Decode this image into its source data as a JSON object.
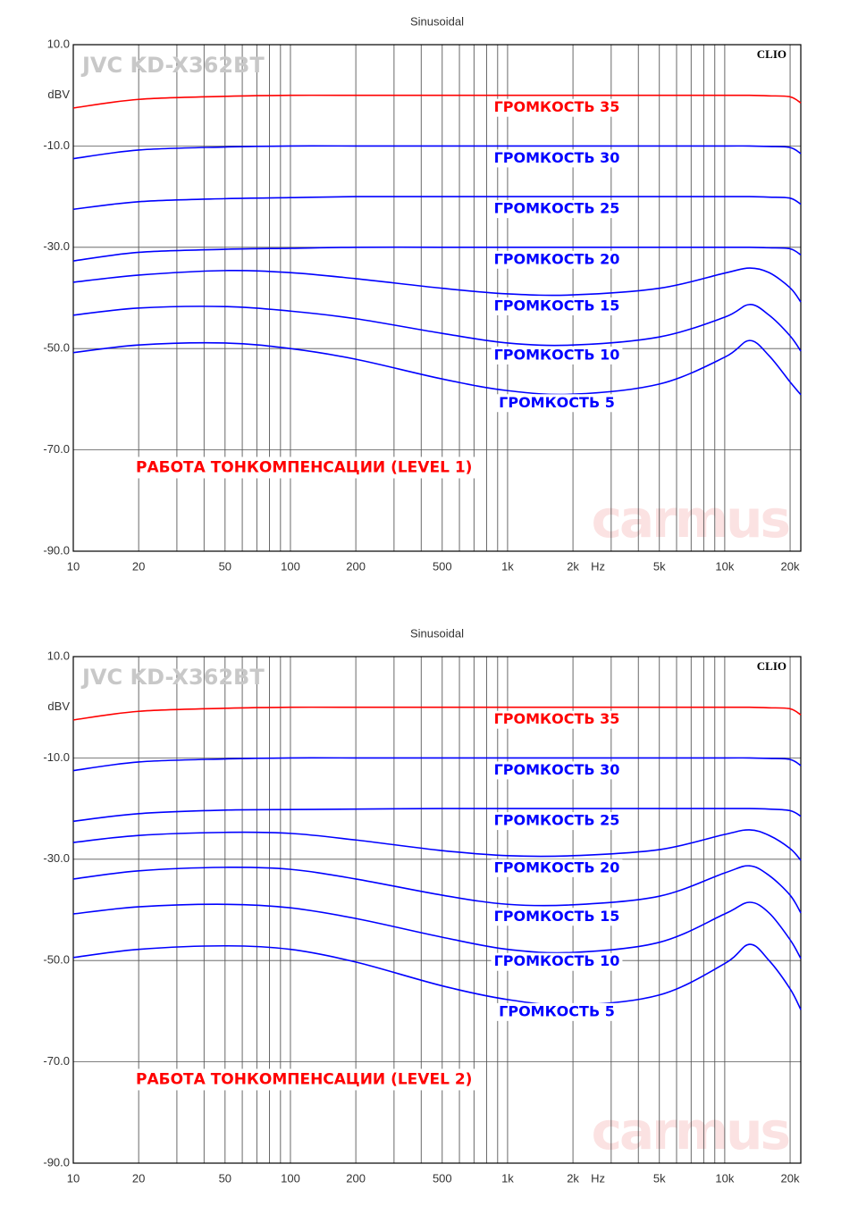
{
  "charts": [
    {
      "chart_data": {
        "type": "line",
        "title": "Sinusoidal",
        "watermark": "JVC KD-X362BT",
        "brand": "CLIO",
        "logo": "carmus",
        "annotation": "РАБОТА ТОНКОМПЕНСАЦИИ (LEVEL 1)",
        "x_unit": "Hz",
        "y_label": "dBV",
        "log_x": true,
        "xlim": [
          10,
          22400
        ],
        "ylim": [
          -90,
          10
        ],
        "xticks": [
          10,
          20,
          50,
          100,
          200,
          500,
          {
            "value": 1000,
            "label": "1k"
          },
          {
            "value": 2000,
            "label": "2k"
          },
          {
            "value": 5000,
            "label": "5k"
          },
          {
            "value": 10000,
            "label": "10k"
          },
          {
            "value": 20000,
            "label": "20k"
          }
        ],
        "minor_xticks": [
          30,
          40,
          60,
          70,
          80,
          90,
          300,
          400,
          600,
          700,
          800,
          900,
          3000,
          4000,
          6000,
          7000,
          8000,
          9000
        ],
        "yticks": [
          {
            "value": 10,
            "label": "10.0"
          },
          {
            "value": -10,
            "label": "-10.0"
          },
          {
            "value": -30,
            "label": "-30.0"
          },
          {
            "value": -50,
            "label": "-50.0"
          },
          {
            "value": -70,
            "label": "-70.0"
          },
          {
            "value": -90,
            "label": "-90.0"
          }
        ],
        "x": [
          10,
          20,
          50,
          100,
          200,
          500,
          1000,
          2000,
          5000,
          10000,
          13000,
          16000,
          20000,
          22400
        ],
        "series": [
          {
            "name": "ГРОМКОСТЬ 35",
            "color": "#ff0000",
            "values": [
              -2.5,
              -0.8,
              -0.2,
              0,
              0,
              0,
              0,
              0,
              0,
              0,
              0,
              -0.1,
              -0.3,
              -1.5
            ]
          },
          {
            "name": "ГРОМКОСТЬ 30",
            "color": "#0000ff",
            "values": [
              -12.5,
              -10.8,
              -10.2,
              -10,
              -10,
              -10,
              -10,
              -10,
              -10,
              -10,
              -10,
              -10.1,
              -10.3,
              -11.5
            ]
          },
          {
            "name": "ГРОМКОСТЬ 25",
            "color": "#0000ff",
            "values": [
              -22.5,
              -21,
              -20.4,
              -20.2,
              -20,
              -20,
              -20,
              -20,
              -20,
              -20,
              -20,
              -20.1,
              -20.3,
              -21.5
            ]
          },
          {
            "name": "ГРОМКОСТЬ 20",
            "color": "#0000ff",
            "values": [
              -32.7,
              -31,
              -30.4,
              -30.2,
              -30,
              -30,
              -30,
              -30,
              -30,
              -30,
              -30,
              -30.1,
              -30.3,
              -31.5
            ]
          },
          {
            "name": "ГРОМКОСТЬ 15",
            "color": "#0000ff",
            "values": [
              -36.9,
              -35.5,
              -34.6,
              -35,
              -36.2,
              -38.1,
              -39.2,
              -39.4,
              -38.1,
              -35.1,
              -34.1,
              -35,
              -38,
              -40.8
            ]
          },
          {
            "name": "ГРОМКОСТЬ 10",
            "color": "#0000ff",
            "values": [
              -43.4,
              -42,
              -41.7,
              -42.6,
              -44.1,
              -47,
              -48.9,
              -49.3,
              -47.7,
              -43.8,
              -41.3,
              -43.4,
              -47.5,
              -50.5
            ]
          },
          {
            "name": "ГРОМКОСТЬ 5",
            "color": "#0000ff",
            "values": [
              -50.8,
              -49.3,
              -48.9,
              -50,
              -52.1,
              -56,
              -58.3,
              -59,
              -57,
              -51.7,
              -48.4,
              -51.4,
              -56.6,
              -59.1
            ]
          }
        ]
      }
    },
    {
      "chart_data": {
        "type": "line",
        "title": "Sinusoidal",
        "watermark": "JVC KD-X362BT",
        "brand": "CLIO",
        "logo": "carmus",
        "annotation": "РАБОТА ТОНКОМПЕНСАЦИИ (LEVEL 2)",
        "x_unit": "Hz",
        "y_label": "dBV",
        "log_x": true,
        "xlim": [
          10,
          22400
        ],
        "ylim": [
          -90,
          10
        ],
        "xticks": [
          10,
          20,
          50,
          100,
          200,
          500,
          {
            "value": 1000,
            "label": "1k"
          },
          {
            "value": 2000,
            "label": "2k"
          },
          {
            "value": 5000,
            "label": "5k"
          },
          {
            "value": 10000,
            "label": "10k"
          },
          {
            "value": 20000,
            "label": "20k"
          }
        ],
        "minor_xticks": [
          30,
          40,
          60,
          70,
          80,
          90,
          300,
          400,
          600,
          700,
          800,
          900,
          3000,
          4000,
          6000,
          7000,
          8000,
          9000
        ],
        "yticks": [
          {
            "value": 10,
            "label": "10.0"
          },
          {
            "value": -10,
            "label": "-10.0"
          },
          {
            "value": -30,
            "label": "-30.0"
          },
          {
            "value": -50,
            "label": "-50.0"
          },
          {
            "value": -70,
            "label": "-70.0"
          },
          {
            "value": -90,
            "label": "-90.0"
          }
        ],
        "x": [
          10,
          20,
          50,
          100,
          200,
          500,
          1000,
          2000,
          5000,
          10000,
          13000,
          16000,
          20000,
          22400
        ],
        "series": [
          {
            "name": "ГРОМКОСТЬ 35",
            "color": "#ff0000",
            "values": [
              -2.5,
              -0.8,
              -0.2,
              0,
              0,
              0,
              0,
              0,
              0,
              0,
              0,
              -0.1,
              -0.3,
              -1.5
            ]
          },
          {
            "name": "ГРОМКОСТЬ 30",
            "color": "#0000ff",
            "values": [
              -12.5,
              -10.8,
              -10.2,
              -10,
              -10,
              -10,
              -10,
              -10,
              -10,
              -10,
              -10,
              -10.1,
              -10.3,
              -11.5
            ]
          },
          {
            "name": "ГРОМКОСТЬ 25",
            "color": "#0000ff",
            "values": [
              -22.5,
              -21,
              -20.3,
              -20.2,
              -20.1,
              -20,
              -20,
              -20,
              -20,
              -20,
              -20,
              -20.1,
              -20.4,
              -21.5
            ]
          },
          {
            "name": "ГРОМКОСТЬ 20",
            "color": "#0000ff",
            "values": [
              -26.7,
              -25.3,
              -24.7,
              -24.9,
              -26.2,
              -28.3,
              -29.3,
              -29.3,
              -28.1,
              -25.1,
              -24.2,
              -25.3,
              -27.9,
              -30.2
            ]
          },
          {
            "name": "ГРОМКОСТЬ 15",
            "color": "#0000ff",
            "values": [
              -33.9,
              -32.3,
              -31.6,
              -32,
              -33.9,
              -37.1,
              -38.9,
              -39,
              -37.3,
              -32.7,
              -31.3,
              -33.2,
              -37.1,
              -40.6
            ]
          },
          {
            "name": "ГРОМКОСТЬ 10",
            "color": "#0000ff",
            "values": [
              -40.8,
              -39.4,
              -38.9,
              -39.6,
              -41.7,
              -45.4,
              -47.8,
              -48.4,
              -46.4,
              -40.8,
              -38.5,
              -40.6,
              -45.9,
              -49.6
            ]
          },
          {
            "name": "ГРОМКОСТЬ 5",
            "color": "#0000ff",
            "values": [
              -49.4,
              -47.8,
              -47.1,
              -47.8,
              -50.3,
              -55,
              -57.7,
              -58.8,
              -56.8,
              -50.6,
              -46.8,
              -50,
              -55.6,
              -59.7
            ]
          }
        ]
      }
    }
  ]
}
